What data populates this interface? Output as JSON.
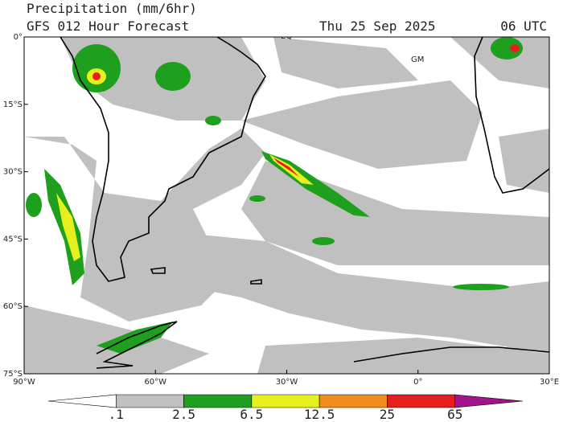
{
  "header": {
    "title": "Precipitation (mm/6hr)",
    "subtitle": "GFS 012 Hour Forecast",
    "date": "Thu 25 Sep 2025",
    "time": "06 UTC"
  },
  "map": {
    "lat_labels": [
      "0°",
      "15°S",
      "30°S",
      "45°S",
      "60°S",
      "75°S"
    ],
    "lon_labels": [
      "90°W",
      "60°W",
      "30°W",
      "0°",
      "30°E"
    ],
    "annotations": [
      "EQ",
      "GM"
    ]
  },
  "colorbar": {
    "labels": [
      ".1",
      "2.5",
      "6.5",
      "12.5",
      "25",
      "65"
    ],
    "colors": [
      "#ffffff",
      "#c0c0c0",
      "#1ea01e",
      "#e6f01e",
      "#f08c1e",
      "#e61e1e",
      "#a0148c"
    ]
  }
}
